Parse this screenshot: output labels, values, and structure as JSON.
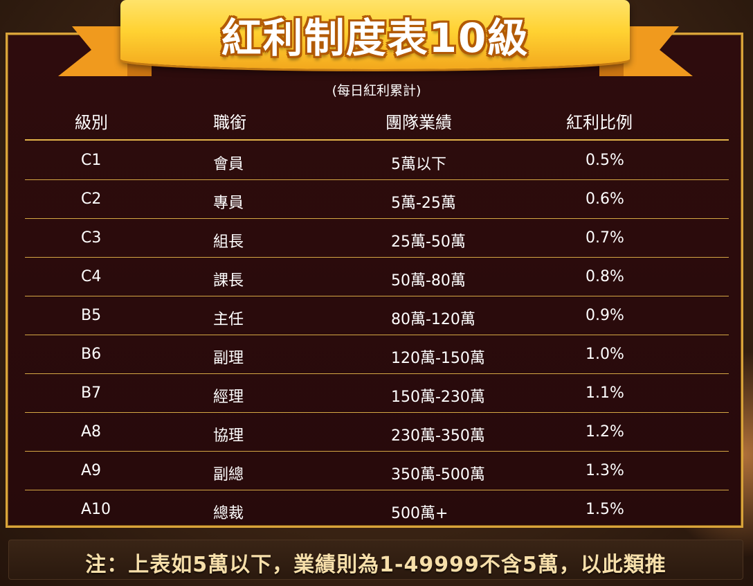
{
  "banner": {
    "title": "紅利制度表10級"
  },
  "subtitle": "(每日紅利累計)",
  "table": {
    "headers": [
      "級別",
      "職銜",
      "團隊業績",
      "紅利比例"
    ],
    "rows": [
      {
        "level": "C1",
        "title": "會員",
        "performance": "5萬以下",
        "rate": "0.5%"
      },
      {
        "level": "C2",
        "title": "專員",
        "performance": "5萬-25萬",
        "rate": "0.6%"
      },
      {
        "level": "C3",
        "title": "組長",
        "performance": "25萬-50萬",
        "rate": "0.7%"
      },
      {
        "level": "C4",
        "title": "課長",
        "performance": "50萬-80萬",
        "rate": "0.8%"
      },
      {
        "level": "B5",
        "title": "主任",
        "performance": "80萬-120萬",
        "rate": "0.9%"
      },
      {
        "level": "B6",
        "title": "副理",
        "performance": "120萬-150萬",
        "rate": "1.0%"
      },
      {
        "level": "B7",
        "title": "經理",
        "performance": "150萬-230萬",
        "rate": "1.1%"
      },
      {
        "level": "A8",
        "title": "協理",
        "performance": "230萬-350萬",
        "rate": "1.2%"
      },
      {
        "level": "A9",
        "title": "副總",
        "performance": "350萬-500萬",
        "rate": "1.3%"
      },
      {
        "level": "A10",
        "title": "總裁",
        "performance": "500萬+",
        "rate": "1.5%"
      }
    ]
  },
  "note": "注：上表如5萬以下，業績則為1-49999不含5萬，以此類推",
  "colors": {
    "panel": "#2e0c0d",
    "border": "#d9a43a",
    "ribbon": "#ffd232",
    "note_text": "#f7dfaa"
  }
}
